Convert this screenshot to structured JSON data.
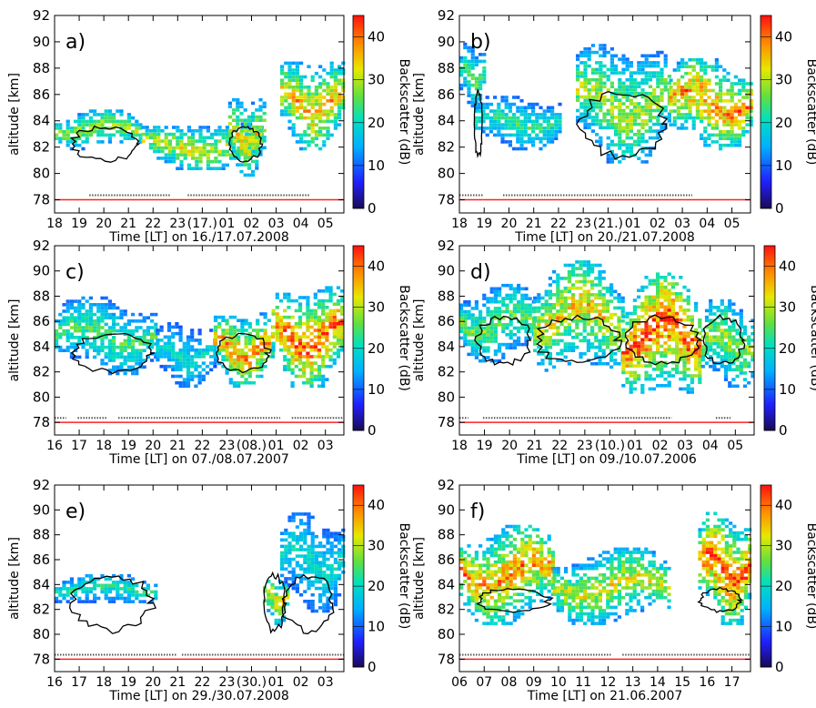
{
  "figure": {
    "ylabel": "altitude [km]",
    "colorbar_label": "Backscatter (dB)",
    "colorbar_ticks": [
      "0",
      "10",
      "20",
      "30",
      "40"
    ],
    "colorbar_range": [
      0,
      45
    ],
    "y_ticks": [
      "78",
      "80",
      "82",
      "84",
      "86",
      "88",
      "90",
      "92"
    ],
    "ylim": [
      77,
      92
    ]
  },
  "chart_data": [
    {
      "type": "heatmap",
      "panel": "a)",
      "xlabel": "Time [LT] on 16./17.07.2008",
      "x_ticks": [
        "18",
        "19",
        "20",
        "21",
        "22",
        "23",
        "(17.)",
        "01",
        "02",
        "03",
        "04",
        "05"
      ],
      "ylabel": "altitude [km]",
      "ylim": [
        77,
        92
      ],
      "echo_regions": [
        {
          "x_range": [
            0.0,
            0.3
          ],
          "alt_range": [
            82,
            85
          ],
          "peak_db": 25
        },
        {
          "x_range": [
            0.3,
            0.72
          ],
          "alt_range": [
            80.5,
            84
          ],
          "peak_db": 28
        },
        {
          "x_range": [
            0.6,
            0.72
          ],
          "alt_range": [
            80,
            86
          ],
          "peak_db": 30
        },
        {
          "x_range": [
            0.78,
            1.0
          ],
          "alt_range": [
            82,
            89
          ],
          "peak_db": 32
        }
      ],
      "contour_alt_range": [
        80.5,
        84
      ],
      "data_marker_ranges": [
        [
          0.12,
          0.4
        ],
        [
          0.46,
          0.88
        ]
      ]
    },
    {
      "type": "heatmap",
      "panel": "b)",
      "xlabel": "Time [LT] on 20./21.07.2008",
      "x_ticks": [
        "18",
        "19",
        "20",
        "21",
        "22",
        "23",
        "(21.)",
        "01",
        "02",
        "03",
        "04",
        "05"
      ],
      "ylabel": "altitude [km]",
      "ylim": [
        77,
        92
      ],
      "echo_regions": [
        {
          "x_range": [
            0.0,
            0.08
          ],
          "alt_range": [
            85,
            90
          ],
          "peak_db": 20
        },
        {
          "x_range": [
            0.05,
            0.35
          ],
          "alt_range": [
            82,
            86
          ],
          "peak_db": 18
        },
        {
          "x_range": [
            0.4,
            0.72
          ],
          "alt_range": [
            81,
            90
          ],
          "peak_db": 26
        },
        {
          "x_range": [
            0.72,
            1.0
          ],
          "alt_range": [
            82,
            89
          ],
          "peak_db": 35
        }
      ],
      "contour_alt_range": [
        80.5,
        87
      ],
      "data_marker_ranges": [
        [
          0.0,
          0.08
        ],
        [
          0.15,
          0.8
        ]
      ]
    },
    {
      "type": "heatmap",
      "panel": "c)",
      "xlabel": "Time [LT] on 07./08.07.2007",
      "x_ticks": [
        "16",
        "17",
        "18",
        "19",
        "20",
        "21",
        "22",
        "23",
        "(08.)",
        "01",
        "02",
        "03"
      ],
      "ylabel": "altitude [km]",
      "ylim": [
        77,
        92
      ],
      "echo_regions": [
        {
          "x_range": [
            0.0,
            0.35
          ],
          "alt_range": [
            82,
            88
          ],
          "peak_db": 20
        },
        {
          "x_range": [
            0.35,
            0.55
          ],
          "alt_range": [
            81,
            86
          ],
          "peak_db": 15
        },
        {
          "x_range": [
            0.55,
            0.75
          ],
          "alt_range": [
            81,
            87
          ],
          "peak_db": 35
        },
        {
          "x_range": [
            0.75,
            1.0
          ],
          "alt_range": [
            81,
            89
          ],
          "peak_db": 38
        }
      ],
      "contour_alt_range": [
        81.5,
        85.5
      ],
      "data_marker_ranges": [
        [
          0.0,
          0.04
        ],
        [
          0.08,
          0.18
        ],
        [
          0.22,
          0.78
        ],
        [
          0.82,
          1.0
        ]
      ]
    },
    {
      "type": "heatmap",
      "panel": "d)",
      "xlabel": "Time [LT] on 09./10.07.2006",
      "x_ticks": [
        "18",
        "19",
        "20",
        "21",
        "22",
        "23",
        "(10.)",
        "01",
        "02",
        "03",
        "04",
        "05"
      ],
      "ylabel": "altitude [km]",
      "ylim": [
        77,
        92
      ],
      "echo_regions": [
        {
          "x_range": [
            0.0,
            0.25
          ],
          "alt_range": [
            83,
            89
          ],
          "peak_db": 22
        },
        {
          "x_range": [
            0.25,
            0.55
          ],
          "alt_range": [
            82,
            91
          ],
          "peak_db": 30
        },
        {
          "x_range": [
            0.55,
            0.82
          ],
          "alt_range": [
            80,
            90
          ],
          "peak_db": 40
        },
        {
          "x_range": [
            0.82,
            1.0
          ],
          "alt_range": [
            81,
            88
          ],
          "peak_db": 25
        }
      ],
      "contour_alt_range": [
        82,
        87
      ],
      "data_marker_ranges": [
        [
          0.0,
          0.03
        ],
        [
          0.08,
          0.72
        ],
        [
          0.87,
          0.92
        ]
      ]
    },
    {
      "type": "heatmap",
      "panel": "e)",
      "xlabel": "Time [LT] on 29./30.07.2008",
      "x_ticks": [
        "16",
        "17",
        "18",
        "19",
        "20",
        "21",
        "22",
        "23",
        "(30.)",
        "01",
        "02",
        "03"
      ],
      "ylabel": "altitude [km]",
      "ylim": [
        77,
        92
      ],
      "echo_regions": [
        {
          "x_range": [
            0.0,
            0.35
          ],
          "alt_range": [
            82.5,
            85
          ],
          "peak_db": 18
        },
        {
          "x_range": [
            0.72,
            0.8
          ],
          "alt_range": [
            81,
            85
          ],
          "peak_db": 30
        },
        {
          "x_range": [
            0.78,
            1.0
          ],
          "alt_range": [
            82,
            90
          ],
          "peak_db": 15
        }
      ],
      "contour_alt_range": [
        79.5,
        85.5
      ],
      "data_marker_ranges": [
        [
          0.0,
          0.42
        ],
        [
          0.44,
          1.0
        ]
      ]
    },
    {
      "type": "heatmap",
      "panel": "f)",
      "xlabel": "Time [LT] on 21.06.2007",
      "x_ticks": [
        "06",
        "07",
        "08",
        "09",
        "10",
        "11",
        "12",
        "13",
        "14",
        "15",
        "16",
        "17"
      ],
      "ylabel": "altitude [km]",
      "ylim": [
        77,
        92
      ],
      "echo_regions": [
        {
          "x_range": [
            0.0,
            0.32
          ],
          "alt_range": [
            81,
            89
          ],
          "peak_db": 35
        },
        {
          "x_range": [
            0.32,
            0.72
          ],
          "alt_range": [
            81,
            87
          ],
          "peak_db": 28
        },
        {
          "x_range": [
            0.82,
            1.0
          ],
          "alt_range": [
            81,
            90
          ],
          "peak_db": 40
        }
      ],
      "contour_alt_range": [
        81.5,
        84
      ],
      "data_marker_ranges": [
        [
          0.0,
          0.52
        ],
        [
          0.56,
          1.0
        ]
      ]
    }
  ]
}
